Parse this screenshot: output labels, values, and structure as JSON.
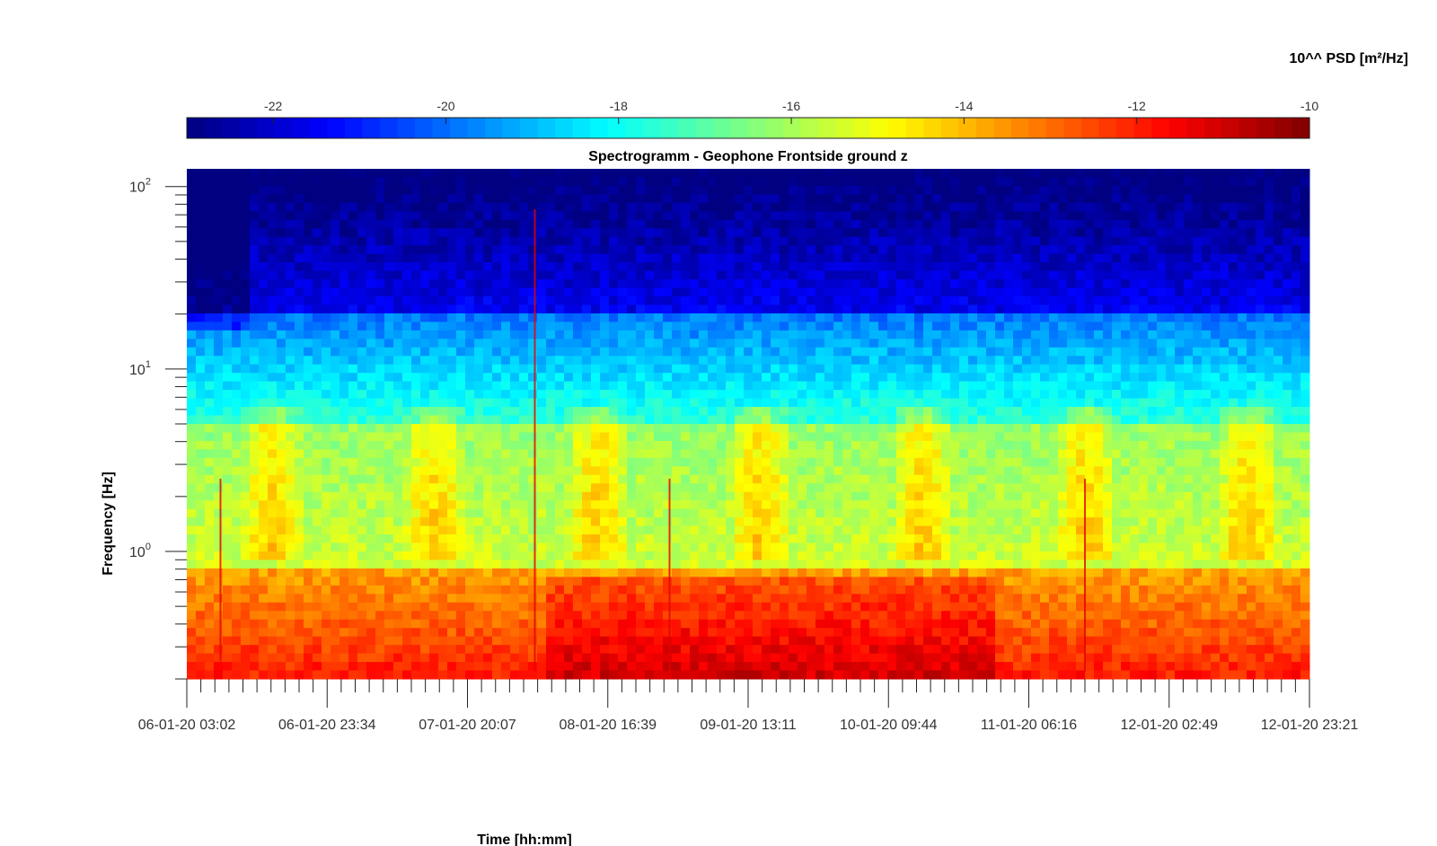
{
  "chart_data": {
    "type": "heatmap",
    "title": "Spectrogramm - Geophone Frontside ground z",
    "xlabel": "Time [hh:mm]",
    "ylabel": "Frequency [Hz]",
    "y_scale": "log",
    "ylim": [
      0.2,
      125
    ],
    "y_ticks": [
      {
        "value": 1,
        "base": "10",
        "exp": "0"
      },
      {
        "value": 10,
        "base": "10",
        "exp": "1"
      },
      {
        "value": 100,
        "base": "10",
        "exp": "2"
      }
    ],
    "x_tick_labels": [
      "06-01-20 03:02",
      "06-01-20 23:34",
      "07-01-20 20:07",
      "08-01-20 16:39",
      "09-01-20 13:11",
      "10-01-20 09:44",
      "11-01-20 06:16",
      "12-01-20 02:49",
      "12-01-20 23:21"
    ],
    "colorbar": {
      "label": "10^^ PSD [m²/Hz]",
      "colormap": "jet",
      "range": [
        -23,
        -10
      ],
      "ticks": [
        "-22",
        "-20",
        "-18",
        "-16",
        "-14",
        "-12",
        "-10"
      ],
      "tick_values": [
        -22,
        -20,
        -18,
        -16,
        -14,
        -12,
        -10
      ]
    },
    "description_values": {
      "high_freq_level": -21.5,
      "mid_freq_level": -17.5,
      "low_freq_level": -12.5
    }
  }
}
